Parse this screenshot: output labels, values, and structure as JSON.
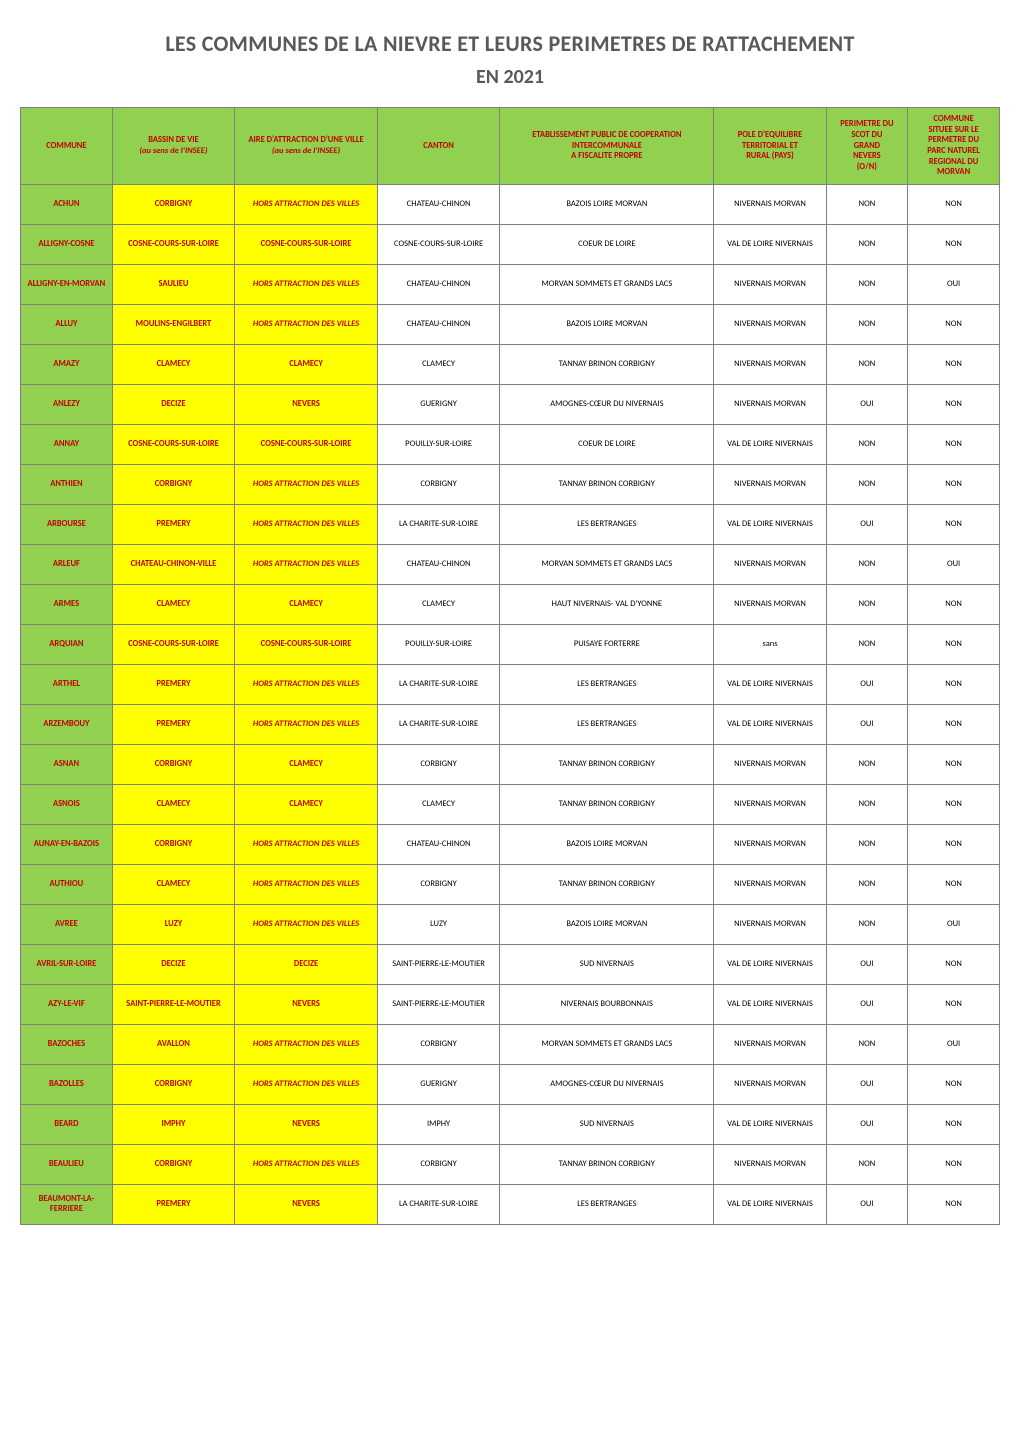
{
  "title_line1": "LES COMMUNES DE LA NIEVRE ET LEURS PERIMETRES DE RATTACHEMENT",
  "title_line2": "EN 2021",
  "colors": {
    "header_bg": "#92d050",
    "header_text": "#c00000",
    "commune_cell_bg": "#92d050",
    "commune_cell_text": "#c00000",
    "bassin_bg": "#ffff00",
    "bassin_text": "#c00000",
    "aire_text": "#c00000",
    "row_bg": "#ffffff",
    "border": "#808080"
  },
  "fonts": {
    "title_size_pt": 16,
    "subtitle_size_pt": 15,
    "header_size_pt": 6.5,
    "cell_size_pt": 6.5,
    "family": "Calibri"
  },
  "columns": [
    {
      "key": "commune",
      "label": "COMMUNE"
    },
    {
      "key": "bassin",
      "label": "BASSIN DE VIE\n(au sens de l'INSEE)"
    },
    {
      "key": "aire",
      "label": "AIRE D'ATTRACTION D'UNE VILLE\n(au sens de l'INSEE)"
    },
    {
      "key": "canton",
      "label": "CANTON"
    },
    {
      "key": "etab",
      "label": "ETABLISSEMENT PUBLIC DE COOPERATION\nINTERCOMMUNALE\nA FISCALITE PROPRE"
    },
    {
      "key": "pole",
      "label": "POLE D'EQUILIBRE\nTERRITORIAL ET\nRURAL (PAYS)"
    },
    {
      "key": "perim",
      "label": "PERIMETRE DU\nSCOT DU\nGRAND\nNEVERS\n(O/N)"
    },
    {
      "key": "morvan",
      "label": "COMMUNE\nSITUEE SUR LE\nPERMETRE DU\nPARC NATUREL\nREGIONAL DU\nMORVAN"
    }
  ],
  "rows": [
    {
      "commune": "ACHUN",
      "bassin": "CORBIGNY",
      "aire": "HORS ATTRACTION DES VILLES",
      "aire_italic": true,
      "canton": "CHATEAU-CHINON",
      "etab": "BAZOIS LOIRE MORVAN",
      "pole": "NIVERNAIS MORVAN",
      "perim": "NON",
      "morvan": "NON"
    },
    {
      "commune": "ALLIGNY-COSNE",
      "bassin": "COSNE-COURS-SUR-LOIRE",
      "aire": "COSNE-COURS-SUR-LOIRE",
      "aire_italic": false,
      "canton": "COSNE-COURS-SUR-LOIRE",
      "etab": "COEUR DE LOIRE",
      "pole": "VAL DE LOIRE NIVERNAIS",
      "perim": "NON",
      "morvan": "NON"
    },
    {
      "commune": "ALLIGNY-EN-MORVAN",
      "bassin": "SAULIEU",
      "aire": "HORS ATTRACTION DES VILLES",
      "aire_italic": true,
      "canton": "CHATEAU-CHINON",
      "etab": "MORVAN SOMMETS ET GRANDS LACS",
      "pole": "NIVERNAIS MORVAN",
      "perim": "NON",
      "morvan": "OUI"
    },
    {
      "commune": "ALLUY",
      "bassin": "MOULINS-ENGILBERT",
      "aire": "HORS ATTRACTION DES VILLES",
      "aire_italic": true,
      "canton": "CHATEAU-CHINON",
      "etab": "BAZOIS LOIRE MORVAN",
      "pole": "NIVERNAIS MORVAN",
      "perim": "NON",
      "morvan": "NON"
    },
    {
      "commune": "AMAZY",
      "bassin": "CLAMECY",
      "aire": "CLAMECY",
      "aire_italic": false,
      "canton": "CLAMECY",
      "etab": "TANNAY BRINON CORBIGNY",
      "pole": "NIVERNAIS MORVAN",
      "perim": "NON",
      "morvan": "NON"
    },
    {
      "commune": "ANLEZY",
      "bassin": "DECIZE",
      "aire": "NEVERS",
      "aire_italic": false,
      "canton": "GUERIGNY",
      "etab": "AMOGNES-CŒUR DU NIVERNAIS",
      "pole": "NIVERNAIS MORVAN",
      "perim": "OUI",
      "morvan": "NON"
    },
    {
      "commune": "ANNAY",
      "bassin": "COSNE-COURS-SUR-LOIRE",
      "aire": "COSNE-COURS-SUR-LOIRE",
      "aire_italic": false,
      "canton": "POUILLY-SUR-LOIRE",
      "etab": "COEUR DE LOIRE",
      "pole": "VAL DE LOIRE NIVERNAIS",
      "perim": "NON",
      "morvan": "NON"
    },
    {
      "commune": "ANTHIEN",
      "bassin": "CORBIGNY",
      "aire": "HORS ATTRACTION DES VILLES",
      "aire_italic": true,
      "canton": "CORBIGNY",
      "etab": "TANNAY BRINON CORBIGNY",
      "pole": "NIVERNAIS MORVAN",
      "perim": "NON",
      "morvan": "NON"
    },
    {
      "commune": "ARBOURSE",
      "bassin": "PREMERY",
      "aire": "HORS ATTRACTION DES VILLES",
      "aire_italic": true,
      "canton": "LA CHARITE-SUR-LOIRE",
      "etab": "LES BERTRANGES",
      "pole": "VAL DE LOIRE NIVERNAIS",
      "perim": "OUI",
      "morvan": "NON"
    },
    {
      "commune": "ARLEUF",
      "bassin": "CHATEAU-CHINON-VILLE",
      "aire": "HORS ATTRACTION DES VILLES",
      "aire_italic": true,
      "canton": "CHATEAU-CHINON",
      "etab": "MORVAN SOMMETS ET GRANDS LACS",
      "pole": "NIVERNAIS MORVAN",
      "perim": "NON",
      "morvan": "OUI"
    },
    {
      "commune": "ARMES",
      "bassin": "CLAMECY",
      "aire": "CLAMECY",
      "aire_italic": false,
      "canton": "CLAMECY",
      "etab": "HAUT NIVERNAIS- VAL D'YONNE",
      "pole": "NIVERNAIS MORVAN",
      "perim": "NON",
      "morvan": "NON"
    },
    {
      "commune": "ARQUIAN",
      "bassin": "COSNE-COURS-SUR-LOIRE",
      "aire": "COSNE-COURS-SUR-LOIRE",
      "aire_italic": false,
      "canton": "POUILLY-SUR-LOIRE",
      "etab": "PUISAYE FORTERRE",
      "pole": "sans",
      "perim": "NON",
      "morvan": "NON"
    },
    {
      "commune": "ARTHEL",
      "bassin": "PREMERY",
      "aire": "HORS ATTRACTION DES VILLES",
      "aire_italic": true,
      "canton": "LA CHARITE-SUR-LOIRE",
      "etab": "LES BERTRANGES",
      "pole": "VAL DE LOIRE NIVERNAIS",
      "perim": "OUI",
      "morvan": "NON"
    },
    {
      "commune": "ARZEMBOUY",
      "bassin": "PREMERY",
      "aire": "HORS ATTRACTION DES VILLES",
      "aire_italic": true,
      "canton": "LA CHARITE-SUR-LOIRE",
      "etab": "LES BERTRANGES",
      "pole": "VAL DE LOIRE NIVERNAIS",
      "perim": "OUI",
      "morvan": "NON"
    },
    {
      "commune": "ASNAN",
      "bassin": "CORBIGNY",
      "aire": "CLAMECY",
      "aire_italic": false,
      "canton": "CORBIGNY",
      "etab": "TANNAY BRINON CORBIGNY",
      "pole": "NIVERNAIS MORVAN",
      "perim": "NON",
      "morvan": "NON"
    },
    {
      "commune": "ASNOIS",
      "bassin": "CLAMECY",
      "aire": "CLAMECY",
      "aire_italic": false,
      "canton": "CLAMECY",
      "etab": "TANNAY BRINON CORBIGNY",
      "pole": "NIVERNAIS MORVAN",
      "perim": "NON",
      "morvan": "NON"
    },
    {
      "commune": "AUNAY-EN-BAZOIS",
      "bassin": "CORBIGNY",
      "aire": "HORS ATTRACTION DES VILLES",
      "aire_italic": true,
      "canton": "CHATEAU-CHINON",
      "etab": "BAZOIS LOIRE MORVAN",
      "pole": "NIVERNAIS MORVAN",
      "perim": "NON",
      "morvan": "NON"
    },
    {
      "commune": "AUTHIOU",
      "bassin": "CLAMECY",
      "aire": "HORS ATTRACTION DES VILLES",
      "aire_italic": true,
      "canton": "CORBIGNY",
      "etab": "TANNAY BRINON CORBIGNY",
      "pole": "NIVERNAIS MORVAN",
      "perim": "NON",
      "morvan": "NON"
    },
    {
      "commune": "AVREE",
      "bassin": "LUZY",
      "aire": "HORS ATTRACTION DES VILLES",
      "aire_italic": true,
      "canton": "LUZY",
      "etab": "BAZOIS LOIRE MORVAN",
      "pole": "NIVERNAIS MORVAN",
      "perim": "NON",
      "morvan": "OUI"
    },
    {
      "commune": "AVRIL-SUR-LOIRE",
      "bassin": "DECIZE",
      "aire": "DECIZE",
      "aire_italic": false,
      "canton": "SAINT-PIERRE-LE-MOUTIER",
      "etab": "SUD NIVERNAIS",
      "pole": "VAL DE LOIRE NIVERNAIS",
      "perim": "OUI",
      "morvan": "NON"
    },
    {
      "commune": "AZY-LE-VIF",
      "bassin": "SAINT-PIERRE-LE-MOUTIER",
      "aire": "NEVERS",
      "aire_italic": false,
      "canton": "SAINT-PIERRE-LE-MOUTIER",
      "etab": "NIVERNAIS BOURBONNAIS",
      "pole": "VAL DE LOIRE NIVERNAIS",
      "perim": "OUI",
      "morvan": "NON"
    },
    {
      "commune": "BAZOCHES",
      "bassin": "AVALLON",
      "aire": "HORS ATTRACTION DES VILLES",
      "aire_italic": true,
      "canton": "CORBIGNY",
      "etab": "MORVAN SOMMETS ET GRANDS LACS",
      "pole": "NIVERNAIS MORVAN",
      "perim": "NON",
      "morvan": "OUI"
    },
    {
      "commune": "BAZOLLES",
      "bassin": "CORBIGNY",
      "aire": "HORS ATTRACTION DES VILLES",
      "aire_italic": true,
      "canton": "GUERIGNY",
      "etab": "AMOGNES-CŒUR DU NIVERNAIS",
      "pole": "NIVERNAIS MORVAN",
      "perim": "OUI",
      "morvan": "NON"
    },
    {
      "commune": "BEARD",
      "bassin": "IMPHY",
      "aire": "NEVERS",
      "aire_italic": false,
      "canton": "IMPHY",
      "etab": "SUD NIVERNAIS",
      "pole": "VAL DE LOIRE NIVERNAIS",
      "perim": "OUI",
      "morvan": "NON"
    },
    {
      "commune": "BEAULIEU",
      "bassin": "CORBIGNY",
      "aire": "HORS ATTRACTION DES VILLES",
      "aire_italic": true,
      "canton": "CORBIGNY",
      "etab": "TANNAY BRINON CORBIGNY",
      "pole": "NIVERNAIS MORVAN",
      "perim": "NON",
      "morvan": "NON"
    },
    {
      "commune": "BEAUMONT-LA-FERRIERE",
      "bassin": "PREMERY",
      "aire": "NEVERS",
      "aire_italic": false,
      "canton": "LA CHARITE-SUR-LOIRE",
      "etab": "LES BERTRANGES",
      "pole": "VAL DE LOIRE NIVERNAIS",
      "perim": "OUI",
      "morvan": "NON"
    }
  ]
}
